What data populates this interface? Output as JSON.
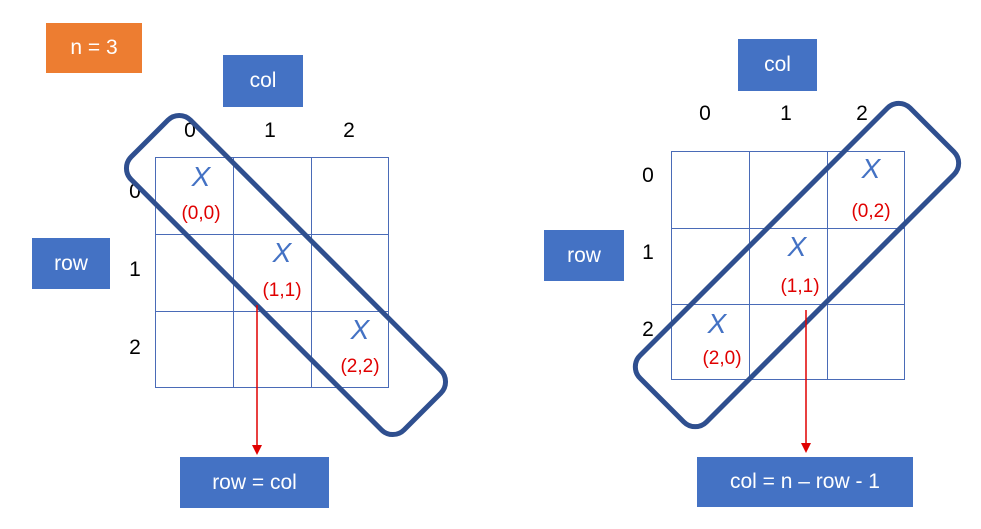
{
  "n_label": "n = 3",
  "left": {
    "col_label": "col",
    "row_label": "row",
    "col_indices": [
      "0",
      "1",
      "2"
    ],
    "row_indices": [
      "0",
      "1",
      "2"
    ],
    "marks": [
      {
        "symbol": "X",
        "coord": "(0,0)"
      },
      {
        "symbol": "X",
        "coord": "(1,1)"
      },
      {
        "symbol": "X",
        "coord": "(2,2)"
      }
    ],
    "formula": "row = col"
  },
  "right": {
    "col_label": "col",
    "row_label": "row",
    "col_indices": [
      "0",
      "1",
      "2"
    ],
    "row_indices": [
      "0",
      "1",
      "2"
    ],
    "marks": [
      {
        "symbol": "X",
        "coord": "(0,2)"
      },
      {
        "symbol": "X",
        "coord": "(1,1)"
      },
      {
        "symbol": "X",
        "coord": "(2,0)"
      }
    ],
    "formula": "col = n – row - 1"
  },
  "colors": {
    "label_box": "#4472c4",
    "n_box": "#ed7d31",
    "outline": "#2f4f8f",
    "arrow": "#e00000",
    "coord_text": "#e00000"
  }
}
